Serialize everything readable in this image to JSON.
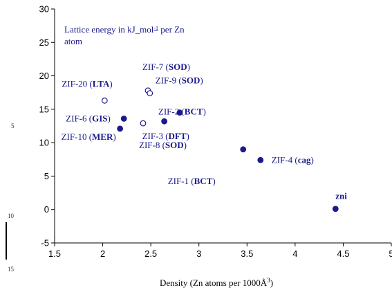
{
  "chart_data": {
    "type": "scatter",
    "note": {
      "line1_prefix": "Lattice energy in kJ_mol",
      "line1_sup": "-1",
      "line1_suffix": " per Zn",
      "line2": "atom"
    },
    "xlabel": {
      "prefix": "Density (Zn atoms per 1000Å",
      "sup": "3",
      "suffix": ")"
    },
    "xlim": [
      1.5,
      5.0
    ],
    "ylim": [
      -5,
      30
    ],
    "xticks": [
      "1.5",
      "2",
      "2.5",
      "3",
      "3.5",
      "4",
      "4.5",
      "5"
    ],
    "yticks": [
      "-5",
      "0",
      "5",
      "10",
      "15",
      "20",
      "25",
      "30"
    ],
    "colors": {
      "filled": "#1a1a8c",
      "label": "#1a1a8c"
    },
    "points": [
      {
        "x": 2.02,
        "y": 16.3,
        "filled": false,
        "name": "ZIF-20 (",
        "topo": "LTA",
        "close": ")"
      },
      {
        "x": 2.47,
        "y": 17.8,
        "filled": false,
        "name": "ZIF-7 (",
        "topo": "SOD",
        "close": ")"
      },
      {
        "x": 2.49,
        "y": 17.4,
        "filled": false,
        "name": "ZIF-9 (",
        "topo": "SOD",
        "close": ")"
      },
      {
        "x": 2.42,
        "y": 12.9,
        "filled": false,
        "name": "ZIF-8 (",
        "topo": "SOD",
        "close": ")"
      },
      {
        "x": 2.22,
        "y": 13.6,
        "filled": true,
        "name": "ZIF-6 (",
        "topo": "GIS",
        "close": ")"
      },
      {
        "x": 2.18,
        "y": 12.1,
        "filled": true,
        "name": "ZIF-10 (",
        "topo": "MER",
        "close": ")"
      },
      {
        "x": 2.64,
        "y": 13.2,
        "filled": true,
        "name": "ZIF-3 (",
        "topo": "DFT",
        "close": ")"
      },
      {
        "x": 2.8,
        "y": 14.5,
        "filled": true,
        "name": "ZIF-2 (",
        "topo": "BCT",
        "close": ")"
      },
      {
        "x": 3.46,
        "y": 9.0,
        "filled": true,
        "name": "ZIF-1 (",
        "topo": "BCT",
        "close": ")"
      },
      {
        "x": 3.64,
        "y": 7.4,
        "filled": true,
        "name": "ZIF-4 (",
        "topo": "cag",
        "close": ")"
      },
      {
        "x": 4.42,
        "y": 0.1,
        "filled": true,
        "name": "",
        "topo": "zni",
        "close": ""
      }
    ]
  },
  "margin_numbers": [
    "5",
    "10",
    "15"
  ]
}
